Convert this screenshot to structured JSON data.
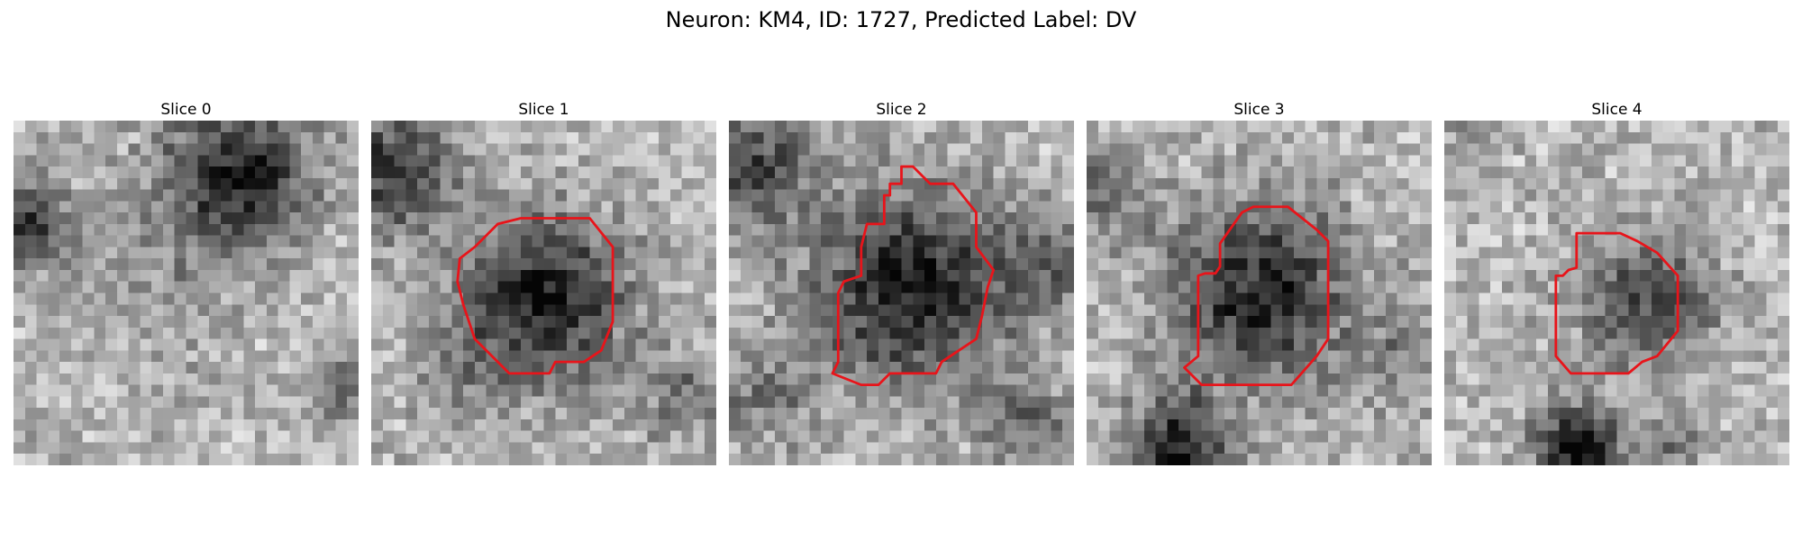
{
  "figure": {
    "title": "Neuron: KM4, ID: 1727, Predicted Label: DV",
    "contour_color": "#e8141a",
    "colormap": "gray",
    "panels": [
      {
        "title": "Slice 0",
        "has_contour": false
      },
      {
        "title": "Slice 1",
        "has_contour": true
      },
      {
        "title": "Slice 2",
        "has_contour": true
      },
      {
        "title": "Slice 3",
        "has_contour": true
      },
      {
        "title": "Slice 4",
        "has_contour": true
      }
    ]
  }
}
